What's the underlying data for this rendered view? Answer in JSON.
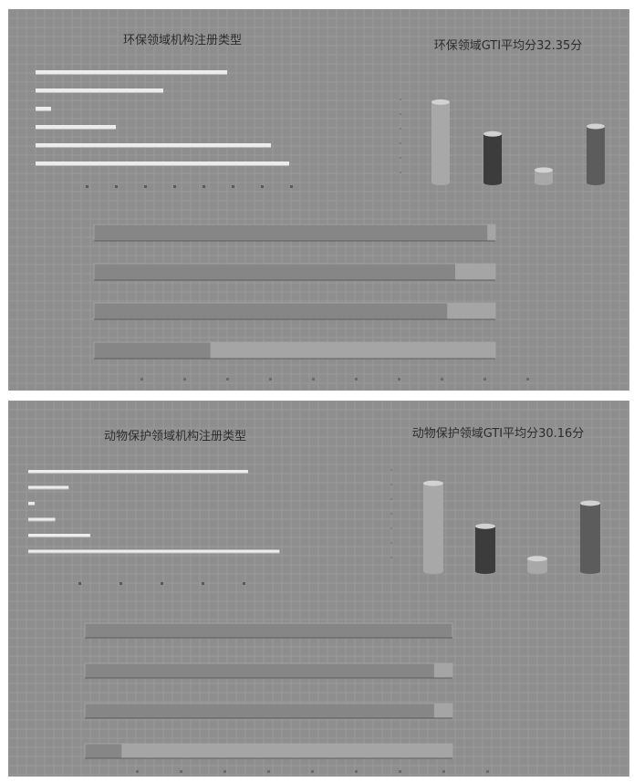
{
  "colors": {
    "background": "#8e8e8e",
    "hbar_light": "#ececec",
    "bar_light": "#a8a8a8",
    "bar_dark": "#3c3c3c",
    "track": "#868686",
    "fill": "#a5a5a5"
  },
  "chart_data": [
    {
      "panel": "top",
      "type": "bar",
      "orientation": "horizontal",
      "title": "环保领域机构注册类型",
      "categories": [
        "",
        "",
        "",
        "",
        "",
        ""
      ],
      "values": [
        210,
        140,
        17,
        88,
        258,
        278
      ],
      "xlim": [
        0,
        300
      ],
      "grid": true
    },
    {
      "panel": "top",
      "type": "bar",
      "title": "环保领域GTI平均分32.35分",
      "categories": [
        "",
        "",
        "",
        ""
      ],
      "values": [
        57.5,
        34.7,
        8.9,
        40.1
      ],
      "ylim": [
        0,
        60
      ]
    },
    {
      "panel": "top",
      "type": "bar",
      "orientation": "horizontal",
      "categories": [
        "",
        "",
        "",
        ""
      ],
      "values": [
        2,
        10,
        12,
        71
      ],
      "xlim": [
        0,
        100
      ]
    },
    {
      "panel": "bottom",
      "type": "bar",
      "orientation": "horizontal",
      "title": "动物保护领域机构注册类型",
      "categories": [
        "",
        "",
        "",
        "",
        "",
        ""
      ],
      "values": [
        245,
        45,
        7,
        30,
        69,
        280
      ],
      "xlim": [
        0,
        300
      ],
      "grid": true
    },
    {
      "panel": "bottom",
      "type": "bar",
      "title": "动物保护领域GTI平均分30.16分",
      "categories": [
        "",
        "",
        "",
        ""
      ],
      "values": [
        60.2,
        30.8,
        8.6,
        46.6
      ],
      "ylim": [
        0,
        70
      ]
    },
    {
      "panel": "bottom",
      "type": "bar",
      "orientation": "horizontal",
      "categories": [
        "",
        "",
        "",
        ""
      ],
      "values": [
        0,
        5,
        5,
        90
      ],
      "xlim": [
        0,
        100
      ]
    }
  ]
}
